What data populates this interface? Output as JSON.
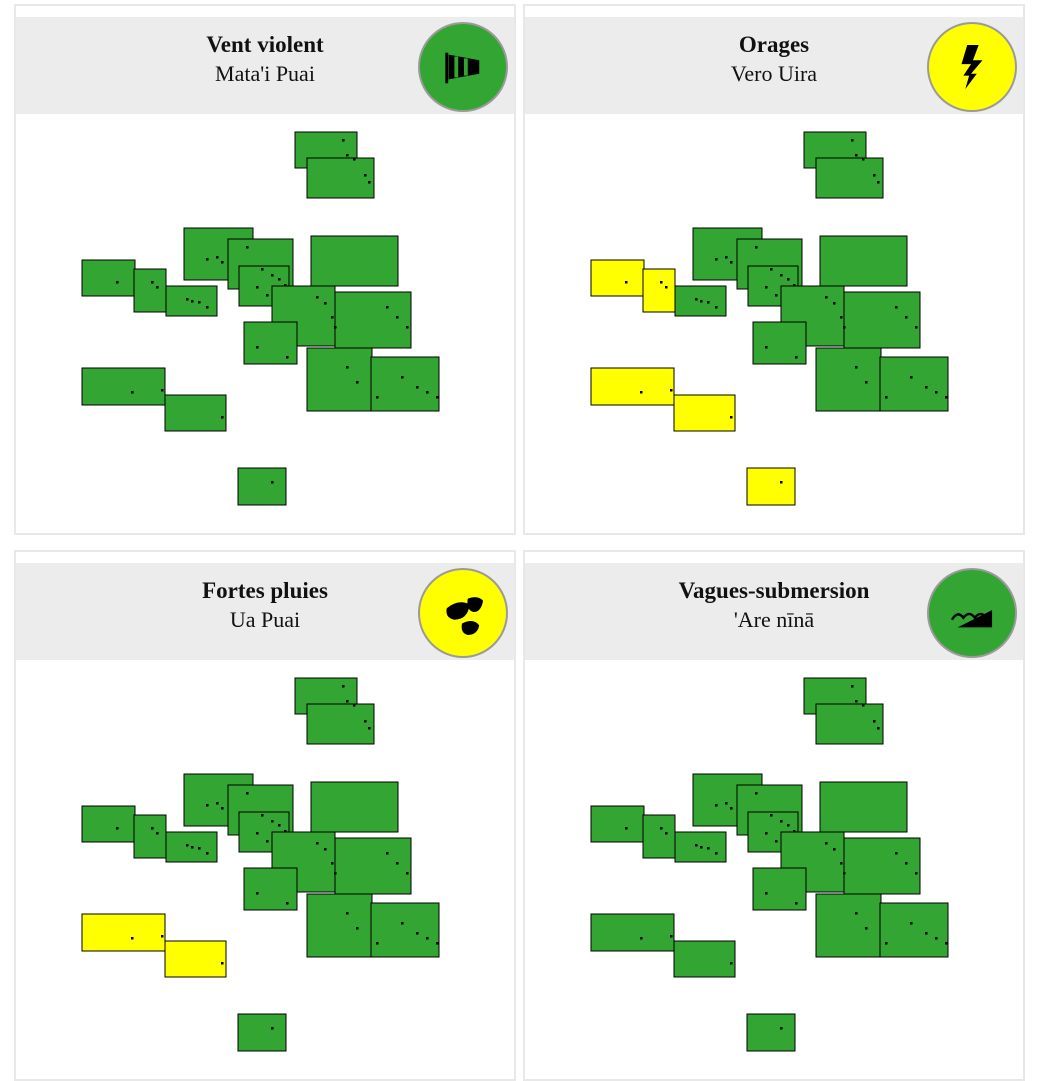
{
  "panels": [
    {
      "title": "Vent violent",
      "subtitle": "Mata'i Puai",
      "level_color": "#33a532",
      "zone_colors": [
        "#33a532",
        "#33a532",
        "#33a532",
        "#33a532",
        "#33a532",
        "#33a532",
        "#33a532",
        "#33a532",
        "#33a532",
        "#33a532",
        "#33a532",
        "#33a532",
        "#33a532",
        "#33a532",
        "#33a532",
        "#33a532",
        "#33a532"
      ]
    },
    {
      "title": "Orages",
      "subtitle": "Vero Uira",
      "level_color": "#ffff00",
      "zone_colors": [
        "#33a532",
        "#33a532",
        "#33a532",
        "#33a532",
        "#33a532",
        "#ffff00",
        "#ffff00",
        "#33a532",
        "#33a532",
        "#33a532",
        "#33a532",
        "#33a532",
        "#33a532",
        "#33a532",
        "#ffff00",
        "#ffff00",
        "#ffff00"
      ]
    },
    {
      "title": "Fortes pluies",
      "subtitle": "Ua Puai",
      "level_color": "#ffff00",
      "zone_colors": [
        "#33a532",
        "#33a532",
        "#33a532",
        "#33a532",
        "#33a532",
        "#33a532",
        "#33a532",
        "#33a532",
        "#33a532",
        "#33a532",
        "#33a532",
        "#33a532",
        "#33a532",
        "#33a532",
        "#ffff00",
        "#ffff00",
        "#33a532"
      ]
    },
    {
      "title": "Vagues-submersion",
      "subtitle": "'Are nīnā",
      "level_color": "#33a532",
      "zone_colors": [
        "#33a532",
        "#33a532",
        "#33a532",
        "#33a532",
        "#33a532",
        "#33a532",
        "#33a532",
        "#33a532",
        "#33a532",
        "#33a532",
        "#33a532",
        "#33a532",
        "#33a532",
        "#33a532",
        "#33a532",
        "#33a532",
        "#33a532"
      ]
    }
  ]
}
